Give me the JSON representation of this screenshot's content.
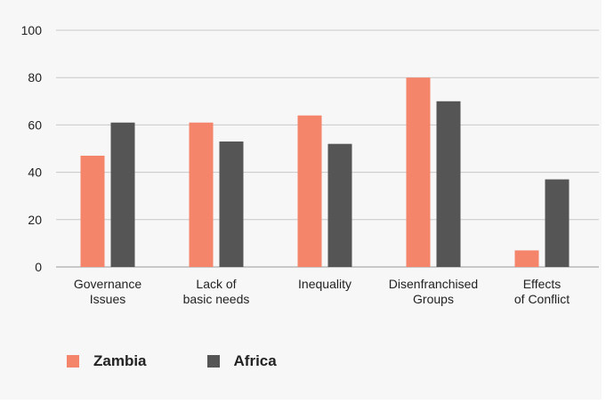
{
  "chart_data": {
    "type": "bar",
    "categories": [
      [
        "Governance",
        "Issues"
      ],
      [
        "Lack of",
        "basic needs"
      ],
      [
        "Inequality"
      ],
      [
        "Disenfranchised",
        "Groups"
      ],
      [
        "Effects",
        "of Conflict"
      ]
    ],
    "series": [
      {
        "name": "Zambia",
        "values": [
          47,
          61,
          64,
          80,
          7
        ],
        "color": "#f4846a"
      },
      {
        "name": "Africa",
        "values": [
          61,
          53,
          52,
          70,
          37
        ],
        "color": "#555555"
      }
    ],
    "ylim": [
      0,
      100
    ],
    "yticks": [
      0,
      20,
      40,
      60,
      80,
      100
    ],
    "grid": true,
    "legend_position": "bottom-left"
  }
}
